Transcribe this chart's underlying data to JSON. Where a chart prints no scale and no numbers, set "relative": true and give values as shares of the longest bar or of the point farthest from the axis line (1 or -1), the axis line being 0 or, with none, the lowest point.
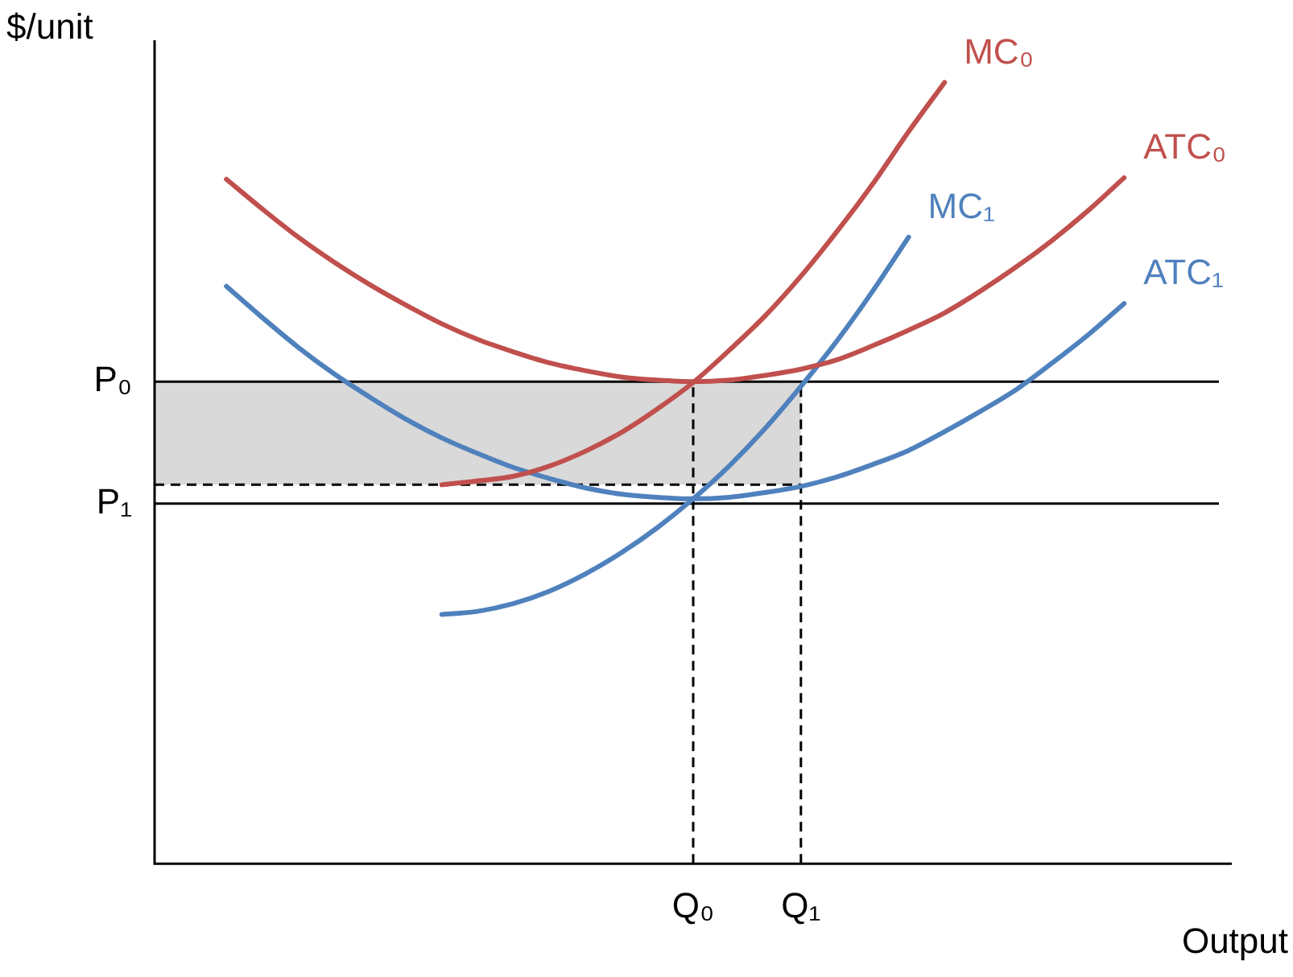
{
  "chart_data": {
    "type": "line",
    "relative": true,
    "ylabel": "$/unit",
    "xlabel": "Output",
    "grid": false,
    "legend": false,
    "categories": [
      null,
      null,
      null,
      null,
      null,
      null,
      null,
      null,
      null,
      null,
      null,
      null,
      null,
      null,
      null,
      "Q₀",
      null,
      null,
      "Q₁",
      null,
      null,
      null,
      null,
      null,
      null,
      null,
      null,
      null,
      null,
      null,
      null
    ],
    "series": [
      {
        "name": "MC₀",
        "color": "#c0504d",
        "values": [
          null,
          null,
          null,
          null,
          null,
          null,
          null,
          null,
          0.485,
          0.49,
          0.496,
          0.509,
          0.528,
          0.552,
          0.582,
          0.616,
          0.657,
          0.701,
          0.752,
          0.809,
          0.87,
          0.937,
          1,
          null,
          null,
          null,
          null,
          null,
          null,
          null,
          null
        ]
      },
      {
        "name": "ATC₀",
        "color": "#c0504d",
        "values": [
          null,
          null,
          0.876,
          0.838,
          0.802,
          0.77,
          0.741,
          0.715,
          0.691,
          0.671,
          0.655,
          0.641,
          0.631,
          0.623,
          0.619,
          0.617,
          0.619,
          0.625,
          0.633,
          0.645,
          0.663,
          0.683,
          0.705,
          0.733,
          0.764,
          0.798,
          0.836,
          0.878,
          null,
          null,
          null
        ]
      },
      {
        "name": "MC₁",
        "color": "#4f81bd",
        "values": [
          null,
          null,
          null,
          null,
          null,
          null,
          null,
          null,
          0.319,
          0.323,
          0.333,
          0.349,
          0.371,
          0.398,
          0.43,
          0.467,
          0.509,
          0.557,
          0.611,
          0.669,
          0.733,
          0.802,
          null,
          null,
          null,
          null,
          null,
          null,
          null,
          null,
          null
        ]
      },
      {
        "name": "ATC₁",
        "color": "#4f81bd",
        "values": [
          null,
          null,
          0.739,
          0.699,
          0.661,
          0.627,
          0.597,
          0.569,
          0.545,
          0.525,
          0.507,
          0.493,
          0.481,
          0.473,
          0.469,
          0.467,
          0.469,
          0.475,
          0.483,
          0.495,
          0.511,
          0.529,
          0.553,
          0.579,
          0.607,
          0.641,
          0.677,
          0.717,
          null,
          null,
          null
        ]
      }
    ],
    "ref_lines": [
      {
        "axis": "y",
        "value": 0.617,
        "label": "P₀",
        "color": "#000000",
        "line_style": "solid"
      },
      {
        "axis": "y",
        "value": 0.461,
        "label": "P₁",
        "color": "#000000",
        "line_style": "solid"
      },
      {
        "axis": "y",
        "value": 0.485,
        "color": "#000000",
        "line_style": "dashed"
      },
      {
        "axis": "x",
        "value": "Q₀",
        "color": "#000000",
        "line_style": "dashed"
      },
      {
        "axis": "x",
        "value": "Q₁",
        "color": "#000000",
        "line_style": "dashed"
      }
    ],
    "bands": [
      {
        "axis": "y",
        "from": 0.485,
        "to": 0.617,
        "color": "#d9d9d9"
      }
    ]
  }
}
